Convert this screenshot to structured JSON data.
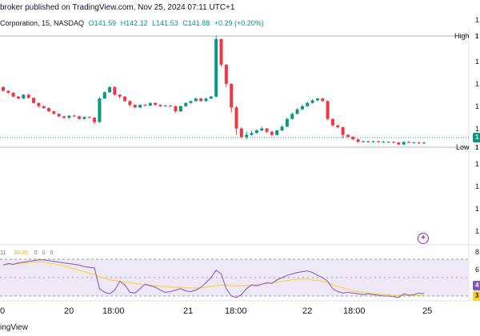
{
  "header": {
    "published_line": "broker published on TradingView.com, Nov 25, 2024 07:11 UTC+1",
    "symbol_name": "Corporation, 15, NASDAQ",
    "ohlc": {
      "open": "O141.59",
      "high": "H142.12",
      "low": "L141.53",
      "close": "C141.88",
      "change": "+0.29 (+0.20%)"
    }
  },
  "price_axis": {
    "high_label": "High",
    "low_label": "Low",
    "labels": [
      "1",
      "1",
      "1",
      "1",
      "1",
      "1",
      "1",
      "1",
      "1"
    ],
    "high_badge": "1",
    "last_badge": "1",
    "low_badge": "1"
  },
  "indicator": {
    "values": [
      "11",
      "30.85",
      "0",
      "0",
      "0"
    ],
    "axis_labels": [
      "8",
      "6",
      "4",
      "3"
    ],
    "badge_purple": "4",
    "badge_orange": "3"
  },
  "time_axis": {
    "labels": [
      "0",
      "20",
      "18:00",
      "21",
      "18:00",
      "22",
      "18:00",
      "25"
    ]
  },
  "footer": {
    "brand": "ingView"
  },
  "colors": {
    "up": "#089981",
    "down": "#f23645",
    "rsi_line": "#7e57c2",
    "rsi_ma": "#f9d423",
    "band_fill": "#ede7f6",
    "last_price": "#089981"
  },
  "icons": {
    "add_button": "plus-circle-icon"
  },
  "chart_data": {
    "type": "candlestick",
    "candles": [
      [
        0.2,
        0.14,
        0.21,
        0.13
      ],
      [
        0.14,
        0.11,
        0.15,
        0.1
      ],
      [
        0.11,
        0.05,
        0.12,
        0.04
      ],
      [
        0.05,
        0.02,
        0.06,
        0.01
      ],
      [
        0.02,
        0.08,
        0.09,
        0.01
      ],
      [
        0.08,
        0.03,
        0.09,
        0.02
      ],
      [
        0.03,
        -0.05,
        0.04,
        -0.06
      ],
      [
        -0.05,
        -0.1,
        -0.04,
        -0.12
      ],
      [
        -0.1,
        -0.13,
        -0.09,
        -0.14
      ],
      [
        -0.13,
        -0.18,
        -0.12,
        -0.19
      ],
      [
        -0.18,
        -0.22,
        -0.17,
        -0.23
      ],
      [
        -0.22,
        -0.26,
        -0.21,
        -0.27
      ],
      [
        -0.26,
        -0.28,
        -0.25,
        -0.3
      ],
      [
        -0.28,
        -0.25,
        -0.24,
        -0.3
      ],
      [
        -0.25,
        -0.26,
        -0.23,
        -0.27
      ],
      [
        -0.26,
        -0.3,
        -0.25,
        -0.31
      ],
      [
        -0.3,
        -0.27,
        -0.26,
        -0.31
      ],
      [
        -0.27,
        -0.28,
        -0.26,
        -0.29
      ],
      [
        -0.28,
        -0.35,
        -0.27,
        -0.38
      ],
      [
        -0.35,
        0.02,
        0.04,
        -0.36
      ],
      [
        0.02,
        0.12,
        0.13,
        0.01
      ],
      [
        0.12,
        0.2,
        0.21,
        0.11
      ],
      [
        0.2,
        0.08,
        0.21,
        0.07
      ],
      [
        0.08,
        0.05,
        0.09,
        0.02
      ],
      [
        0.05,
        -0.02,
        0.06,
        -0.03
      ],
      [
        -0.02,
        -0.08,
        -0.01,
        -0.1
      ],
      [
        -0.08,
        -0.12,
        -0.07,
        -0.13
      ],
      [
        -0.12,
        -0.08,
        -0.07,
        -0.13
      ],
      [
        -0.08,
        -0.09,
        -0.07,
        -0.1
      ],
      [
        -0.09,
        -0.05,
        -0.04,
        -0.1
      ],
      [
        -0.05,
        -0.08,
        -0.04,
        -0.09
      ],
      [
        -0.08,
        -0.1,
        -0.07,
        -0.11
      ],
      [
        -0.1,
        -0.09,
        -0.08,
        -0.11
      ],
      [
        -0.09,
        -0.1,
        -0.08,
        -0.11
      ],
      [
        -0.1,
        -0.18,
        -0.09,
        -0.2
      ],
      [
        -0.18,
        -0.1,
        -0.09,
        -0.19
      ],
      [
        -0.1,
        -0.05,
        -0.04,
        -0.11
      ],
      [
        -0.05,
        -0.02,
        -0.01,
        -0.06
      ],
      [
        -0.02,
        0.02,
        0.03,
        -0.03
      ],
      [
        0.02,
        -0.02,
        0.03,
        -0.03
      ],
      [
        -0.02,
        0.02,
        0.03,
        -0.03
      ],
      [
        0.02,
        0.05,
        0.06,
        0.01
      ],
      [
        0.05,
        0.95,
        1.0,
        0.04
      ],
      [
        0.95,
        0.55,
        0.96,
        0.52
      ],
      [
        0.55,
        0.25,
        0.56,
        0.2
      ],
      [
        0.25,
        -0.12,
        0.26,
        -0.2
      ],
      [
        -0.12,
        -0.45,
        -0.1,
        -0.55
      ],
      [
        -0.45,
        -0.58,
        -0.43,
        -0.6
      ],
      [
        -0.58,
        -0.55,
        -0.5,
        -0.62
      ],
      [
        -0.55,
        -0.52,
        -0.49,
        -0.56
      ],
      [
        -0.52,
        -0.48,
        -0.46,
        -0.53
      ],
      [
        -0.48,
        -0.45,
        -0.42,
        -0.49
      ],
      [
        -0.45,
        -0.5,
        -0.44,
        -0.52
      ],
      [
        -0.5,
        -0.55,
        -0.49,
        -0.57
      ],
      [
        -0.55,
        -0.48,
        -0.47,
        -0.56
      ],
      [
        -0.48,
        -0.42,
        -0.4,
        -0.49
      ],
      [
        -0.42,
        -0.3,
        -0.28,
        -0.43
      ],
      [
        -0.3,
        -0.22,
        -0.2,
        -0.31
      ],
      [
        -0.22,
        -0.15,
        -0.13,
        -0.23
      ],
      [
        -0.15,
        -0.1,
        -0.08,
        -0.16
      ],
      [
        -0.1,
        -0.05,
        -0.03,
        -0.11
      ],
      [
        -0.05,
        -0.01,
        0.01,
        -0.06
      ],
      [
        -0.01,
        0.02,
        0.03,
        -0.02
      ],
      [
        0.02,
        -0.02,
        0.03,
        -0.03
      ],
      [
        -0.02,
        -0.3,
        -0.01,
        -0.32
      ],
      [
        -0.3,
        -0.4,
        -0.29,
        -0.42
      ],
      [
        -0.4,
        -0.43,
        -0.39,
        -0.45
      ],
      [
        -0.43,
        -0.55,
        -0.42,
        -0.6
      ],
      [
        -0.55,
        -0.58,
        -0.54,
        -0.6
      ],
      [
        -0.58,
        -0.62,
        -0.57,
        -0.63
      ],
      [
        -0.62,
        -0.66,
        -0.61,
        -0.67
      ],
      [
        -0.66,
        -0.65,
        -0.64,
        -0.67
      ],
      [
        -0.65,
        -0.66,
        -0.64,
        -0.67
      ],
      [
        -0.66,
        -0.65,
        -0.64,
        -0.67
      ],
      [
        -0.65,
        -0.66,
        -0.64,
        -0.67
      ],
      [
        -0.66,
        -0.66,
        -0.64,
        -0.67
      ],
      [
        -0.66,
        -0.66,
        -0.65,
        -0.67
      ],
      [
        -0.66,
        -0.67,
        -0.65,
        -0.68
      ],
      [
        -0.67,
        -0.7,
        -0.66,
        -0.71
      ],
      [
        -0.7,
        -0.66,
        -0.65,
        -0.71
      ],
      [
        -0.66,
        -0.67,
        -0.65,
        -0.68
      ],
      [
        -0.67,
        -0.67,
        -0.66,
        -0.68
      ],
      [
        -0.67,
        -0.68,
        -0.66,
        -0.69
      ],
      [
        -0.68,
        -0.67,
        -0.66,
        -0.69
      ]
    ],
    "rsi": [
      72,
      74,
      73,
      75,
      76,
      77,
      78,
      79,
      79,
      78,
      77,
      76,
      75,
      74,
      73,
      72,
      70,
      69,
      68,
      40,
      35,
      33,
      38,
      50,
      45,
      35,
      34,
      40,
      46,
      44,
      42,
      38,
      35,
      36,
      38,
      40,
      37,
      36,
      38,
      42,
      48,
      55,
      65,
      60,
      40,
      30,
      28,
      32,
      40,
      45,
      44,
      46,
      48,
      47,
      52,
      55,
      58,
      60,
      62,
      63,
      64,
      62,
      58,
      55,
      50,
      40,
      36,
      34,
      35,
      34,
      33,
      32,
      33,
      32,
      31,
      30,
      30,
      29,
      28,
      33,
      31,
      32,
      34,
      33
    ],
    "rsi_ma": [
      72,
      73,
      73,
      74,
      75,
      75,
      76,
      76,
      76,
      75,
      74,
      72,
      71,
      69,
      67,
      65,
      63,
      61,
      59,
      56,
      54,
      52,
      51,
      50,
      49,
      48,
      47,
      46,
      45,
      45,
      44,
      43,
      43,
      42,
      42,
      42,
      41,
      41,
      41,
      41,
      42,
      43,
      44,
      45,
      45,
      44,
      44,
      44,
      44,
      45,
      45,
      46,
      47,
      48,
      49,
      50,
      51,
      52,
      53,
      53,
      53,
      52,
      51,
      50,
      48,
      45,
      43,
      41,
      39,
      37,
      36,
      35,
      34,
      33,
      33,
      32,
      32,
      31,
      31,
      31,
      31,
      31,
      31,
      31
    ]
  }
}
